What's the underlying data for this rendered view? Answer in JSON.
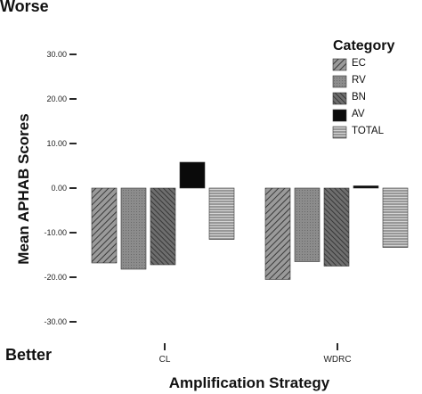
{
  "annotations": {
    "top": "Worse",
    "bottom": "Better"
  },
  "chart_data": {
    "type": "bar",
    "title": "",
    "xlabel": "Amplification Strategy",
    "ylabel": "Mean APHAB Scores",
    "ylim": [
      -30,
      30
    ],
    "yticks": [
      30,
      20,
      10,
      0,
      -10,
      -20,
      -30
    ],
    "ytick_labels": [
      "30.00",
      "20.00",
      "10.00",
      "0.00",
      "-10.00",
      "-20.00",
      "-30.00"
    ],
    "categories": [
      "CL",
      "WDRC"
    ],
    "legend_title": "Category",
    "legend_position": "top-right",
    "grid": false,
    "series": [
      {
        "name": "EC",
        "values": [
          -16.8,
          -20.5
        ],
        "pattern": "diagonal"
      },
      {
        "name": "RV",
        "values": [
          -18.2,
          -16.5
        ],
        "pattern": "gray"
      },
      {
        "name": "BN",
        "values": [
          -17.2,
          -17.5
        ],
        "pattern": "diagonal-dark"
      },
      {
        "name": "AV",
        "values": [
          5.8,
          0.5
        ],
        "pattern": "black"
      },
      {
        "name": "TOTAL",
        "values": [
          -11.5,
          -13.3
        ],
        "pattern": "horizontal"
      }
    ]
  }
}
